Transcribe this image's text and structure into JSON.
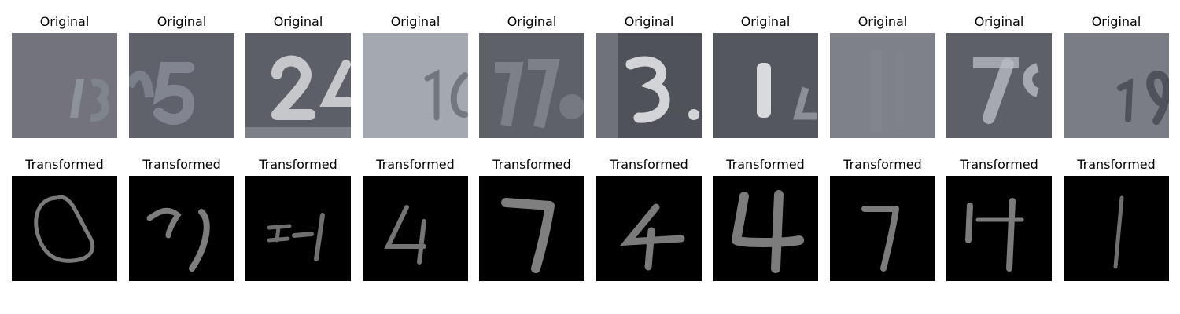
{
  "figure": {
    "original_title": "Original",
    "transformed_title": "Transformed",
    "original_tiles": [
      {
        "title": "Original"
      },
      {
        "title": "Original"
      },
      {
        "title": "Original"
      },
      {
        "title": "Original"
      },
      {
        "title": "Original"
      },
      {
        "title": "Original"
      },
      {
        "title": "Original"
      },
      {
        "title": "Original"
      },
      {
        "title": "Original"
      },
      {
        "title": "Original"
      }
    ],
    "transformed_tiles": [
      {
        "title": "Transformed"
      },
      {
        "title": "Transformed"
      },
      {
        "title": "Transformed"
      },
      {
        "title": "Transformed"
      },
      {
        "title": "Transformed"
      },
      {
        "title": "Transformed"
      },
      {
        "title": "Transformed"
      },
      {
        "title": "Transformed"
      },
      {
        "title": "Transformed"
      },
      {
        "title": "Transformed"
      }
    ]
  },
  "colors": {
    "background": "#ffffff",
    "original_bg": "#6b6d76",
    "original_light": "#a9abb2",
    "original_dark": "#4f5159",
    "transformed_bg": "#000000",
    "transformed_stroke": "#7c7c7c"
  }
}
